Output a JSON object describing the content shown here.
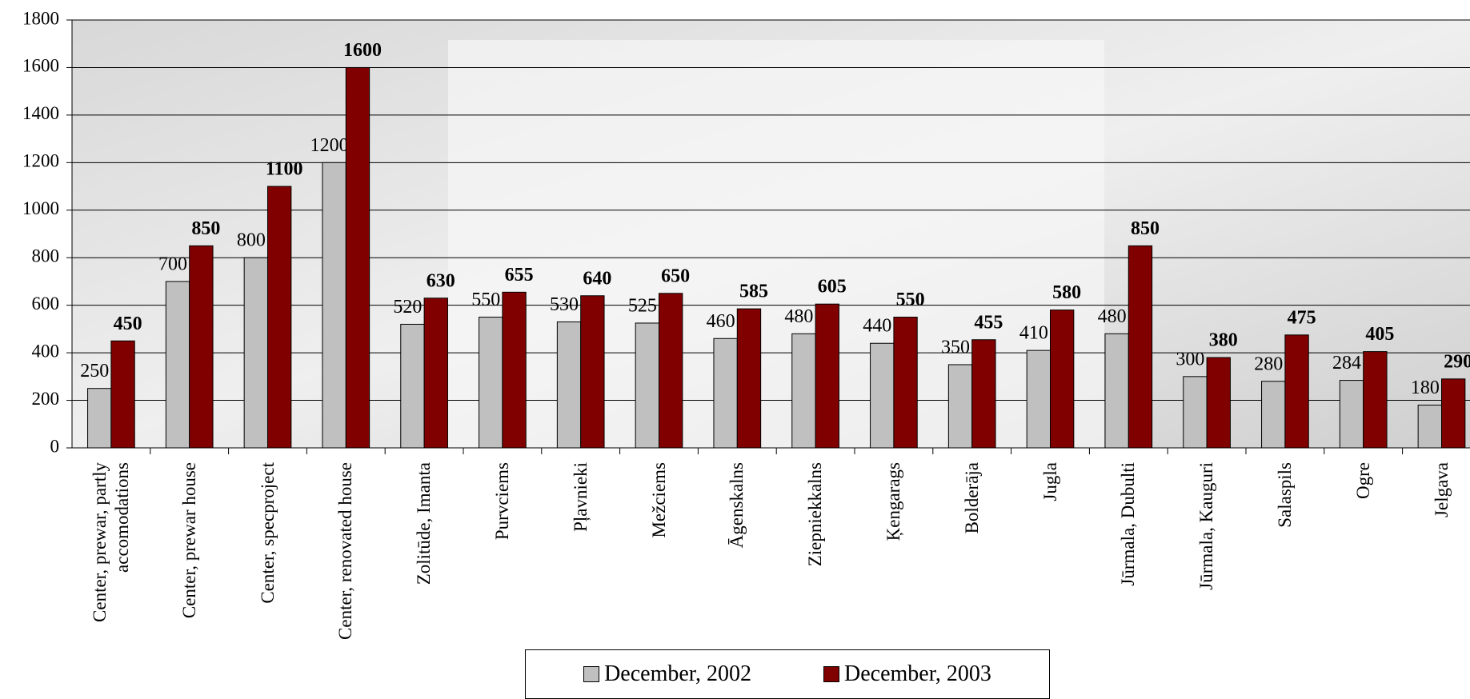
{
  "chart_data": {
    "type": "bar",
    "categories": [
      "Center, prewar, partly accomodations",
      "Center, prewar house",
      "Center, specproject",
      "Center, renovated house",
      "Zolitūde, Imanta",
      "Purvciems",
      "Pļavnieki",
      "Mežciems",
      "Āgenskalns",
      "Ziepniekkalns",
      "Ķengarags",
      "Bolderāja",
      "Jugla",
      "Jūrmala, Dubulti",
      "Jūrmala, Kauguri",
      "Salaspils",
      "Ogre",
      "Jelgava"
    ],
    "series": [
      {
        "name": "December, 2002",
        "color": "#c0c0c0",
        "values": [
          250,
          700,
          800,
          1200,
          520,
          550,
          530,
          525,
          460,
          480,
          440,
          350,
          410,
          480,
          300,
          280,
          284,
          180
        ]
      },
      {
        "name": "December, 2003",
        "color": "#800000",
        "values": [
          450,
          850,
          1100,
          1600,
          630,
          655,
          640,
          650,
          585,
          605,
          550,
          455,
          580,
          850,
          380,
          475,
          405,
          290
        ]
      }
    ],
    "ylim": [
      0,
      1800
    ],
    "yticks": [
      0,
      200,
      400,
      600,
      800,
      1000,
      1200,
      1400,
      1600,
      1800
    ],
    "grid": true
  }
}
